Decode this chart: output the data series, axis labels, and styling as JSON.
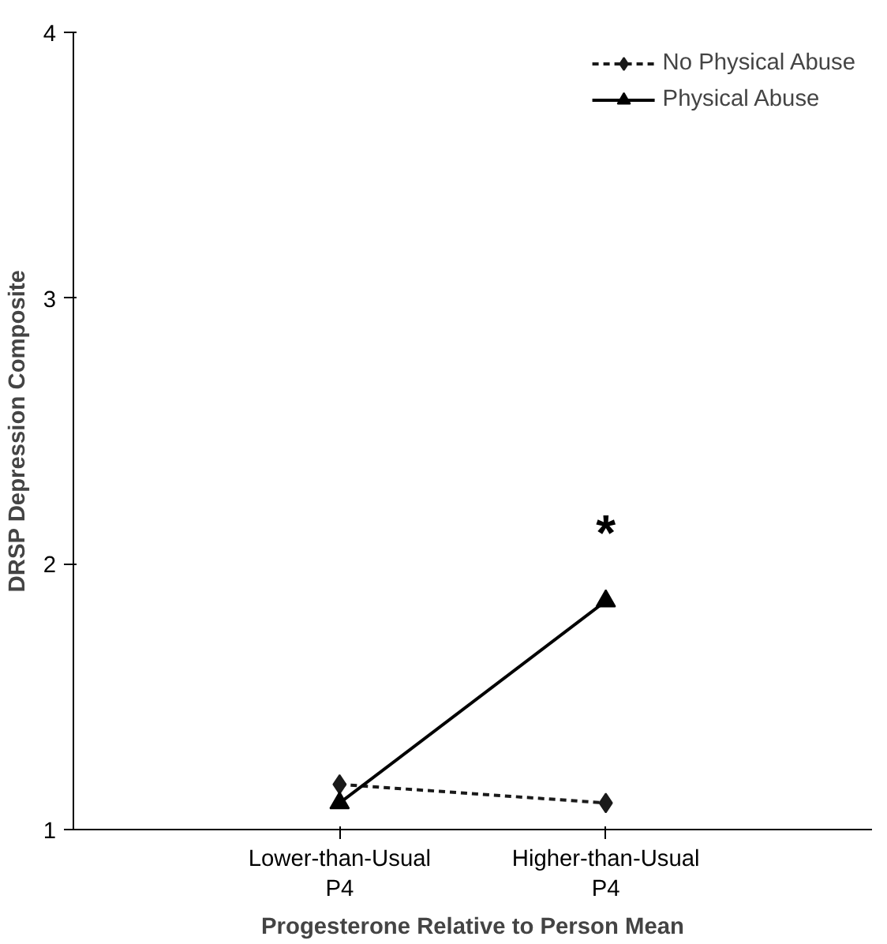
{
  "chart_data": {
    "type": "line",
    "xlabel": "Progesterone Relative to Person Mean",
    "ylabel": "DRSP Depression Composite",
    "categories": [
      "Lower-than-Usual\nP4",
      "Higher-than-Usual\nP4"
    ],
    "series": [
      {
        "name": "No Physical Abuse",
        "color": "#1a1a1a",
        "values": [
          1.17,
          1.1
        ],
        "marker": "diamond",
        "line_style": "dashed"
      },
      {
        "name": "Physical Abuse",
        "color": "#000000",
        "values": [
          1.1,
          1.86
        ],
        "marker": "triangle",
        "line_style": "solid"
      }
    ],
    "ylim": [
      1,
      4
    ],
    "yticks": [
      1,
      2,
      3,
      4
    ],
    "grid": false,
    "legend": "top right",
    "annotations": [
      "*"
    ]
  }
}
